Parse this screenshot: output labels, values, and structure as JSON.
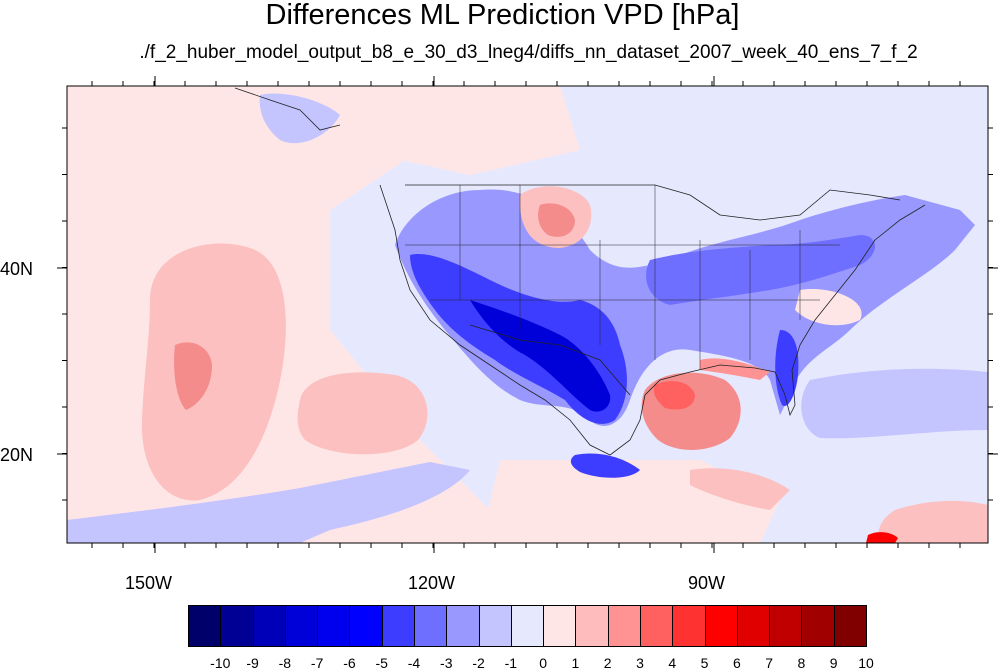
{
  "title": "Differences ML Prediction VPD [hPa]",
  "subtitle": "./f_2_huber_model_output_b8_e_30_d3_lneg4/diffs_nn_dataset_2007_week_40_ens_7_f_2",
  "axes": {
    "lon_labels": [
      "150W",
      "120W",
      "90W"
    ],
    "lat_labels": [
      "40N",
      "20N"
    ]
  },
  "colorbar": {
    "labels": [
      "-10",
      "-9",
      "-8",
      "-7",
      "-6",
      "-5",
      "-4",
      "-3",
      "-2",
      "-1",
      "0",
      "1",
      "2",
      "3",
      "4",
      "5",
      "6",
      "7",
      "8",
      "9",
      "10"
    ],
    "colors": [
      "#00006b",
      "#000095",
      "#0000b8",
      "#0000d8",
      "#0000ee",
      "#0000ff",
      "#3d3dff",
      "#6f6fff",
      "#9898ff",
      "#c4c4ff",
      "#e6e8fe",
      "#fee6e6",
      "#ffbcbc",
      "#ff9292",
      "#ff6060",
      "#ff3232",
      "#ff0000",
      "#e00000",
      "#c00000",
      "#a00000",
      "#800000"
    ]
  },
  "palette": {
    "background_neutral_blue": "#e6e8fe",
    "background_neutral_pink": "#fee6e6",
    "light_pink": "#fcc0c0",
    "mid_red": "#f48c8c",
    "deep_blue": "#0a0ae8",
    "mid_blue": "#5d5df8",
    "light_blue": "#a8aaf8"
  }
}
